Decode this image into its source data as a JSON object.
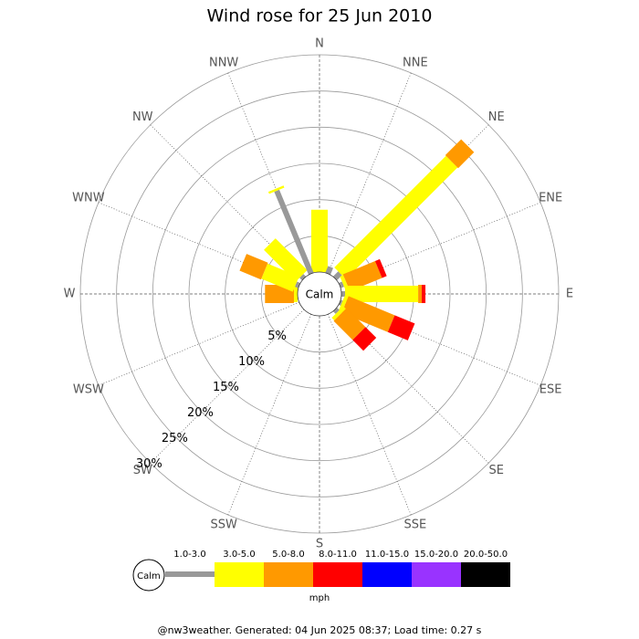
{
  "chart_data": {
    "type": "windrose",
    "title": "Wind rose for 25 Jun 2010",
    "directions": [
      "N",
      "NNE",
      "NE",
      "ENE",
      "E",
      "ESE",
      "SE",
      "SSE",
      "S",
      "SSW",
      "SW",
      "WSW",
      "W",
      "WNW",
      "NW",
      "NNW"
    ],
    "calm_label": "Calm",
    "rlim": [
      0,
      30
    ],
    "rticks": [
      {
        "value": 5,
        "label": "5%"
      },
      {
        "value": 10,
        "label": "10%"
      },
      {
        "value": 15,
        "label": "15%"
      },
      {
        "value": 20,
        "label": "20%"
      },
      {
        "value": 25,
        "label": "25%"
      },
      {
        "value": 30,
        "label": "30%"
      }
    ],
    "series": [
      {
        "name": "1.0-3.0",
        "color": "#999999",
        "values": [
          0,
          1,
          1,
          0.5,
          0.5,
          0.3,
          0.5,
          0,
          0,
          0,
          0,
          0,
          0,
          0.5,
          0.5,
          12.4
        ]
      },
      {
        "name": "3.0-5.0",
        "color": "#ffff00",
        "values": [
          8.6,
          0,
          21.8,
          0.5,
          10.1,
          0.5,
          0.5,
          0,
          0,
          0,
          0,
          0,
          0.5,
          4.7,
          6.2,
          0.3
        ]
      },
      {
        "name": "5.0-8.0",
        "color": "#ff9900",
        "values": [
          0,
          0,
          3.1,
          4.8,
          0.5,
          6.9,
          3.7,
          0,
          0,
          0,
          0,
          0,
          4,
          3.2,
          0,
          0
        ]
      },
      {
        "name": "8.0-11.0",
        "color": "#ff0000",
        "values": [
          0,
          0,
          0,
          0.7,
          0.5,
          3,
          2.1,
          0,
          0,
          0,
          0,
          0,
          0,
          0,
          0,
          0
        ]
      },
      {
        "name": "11.0-15.0",
        "color": "#0000ff",
        "values": [
          0,
          0,
          0,
          0,
          0,
          0,
          0,
          0,
          0,
          0,
          0,
          0,
          0,
          0,
          0,
          0
        ]
      },
      {
        "name": "15.0-20.0",
        "color": "#9933ff",
        "values": [
          0,
          0,
          0,
          0,
          0,
          0,
          0,
          0,
          0,
          0,
          0,
          0,
          0,
          0,
          0,
          0
        ]
      },
      {
        "name": "20.0-50.0",
        "color": "#000000",
        "values": [
          0,
          0,
          0,
          0,
          0,
          0,
          0,
          0,
          0,
          0,
          0,
          0,
          0,
          0,
          0,
          0
        ]
      }
    ],
    "legend_unit": "mph",
    "footer": "@nw3weather. Generated: 04 Jun 2025 08:37; Load time: 0.27 s"
  }
}
